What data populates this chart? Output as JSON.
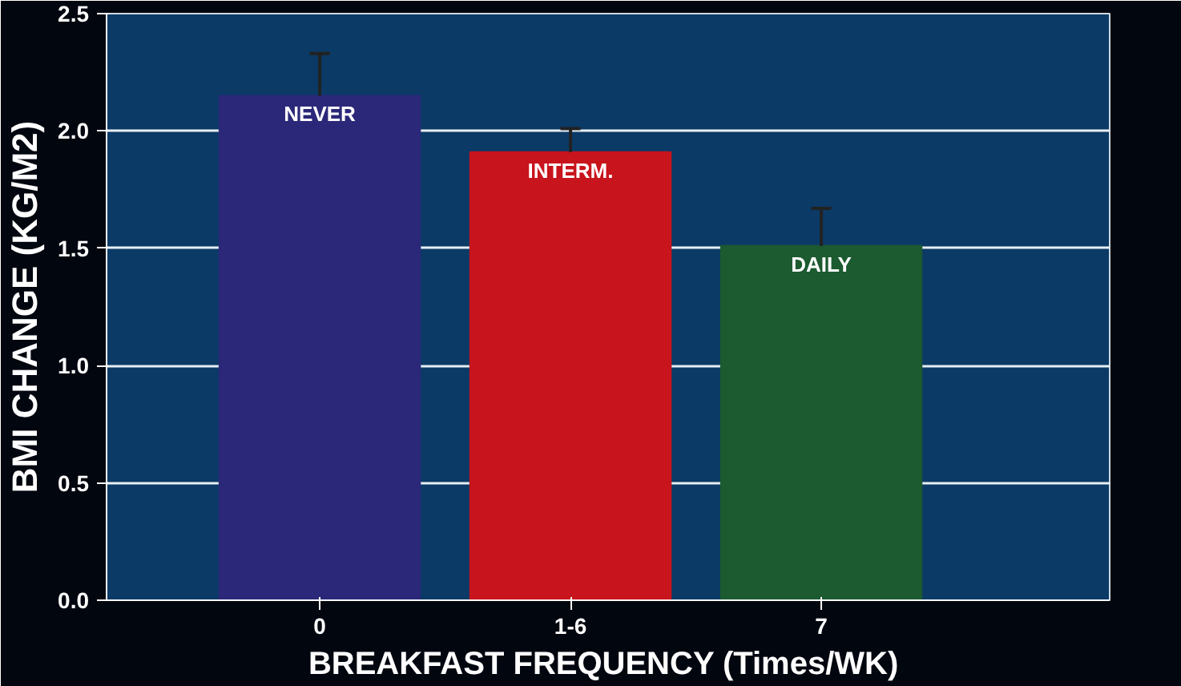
{
  "chart_data": {
    "type": "bar",
    "xlabel": "BREAKFAST FREQUENCY  (Times/WK)",
    "ylabel": "BMI CHANGE (KG/M2)",
    "categories": [
      "0",
      "1-6",
      "7"
    ],
    "values": [
      2.15,
      1.91,
      1.51
    ],
    "colors": [
      "#2b287a",
      "#c8141c",
      "#1c5a30"
    ],
    "errors": [
      [
        2.15,
        2.33
      ],
      [
        1.91,
        2.01
      ],
      [
        1.51,
        1.67
      ]
    ],
    "annotations": [
      {
        "text": "NEVER",
        "x": "0",
        "y": 2.15
      },
      {
        "text": "INTERM.",
        "x": "1-6",
        "y": 1.91
      },
      {
        "text": "DAILY",
        "x": "7",
        "y": 1.51
      }
    ],
    "ylim": [
      0,
      2.5
    ],
    "yticks": [
      {
        "value": 0,
        "label": "0.0"
      },
      {
        "value": 0.5,
        "label": "0.5"
      },
      {
        "value": 1,
        "label": "1.0"
      },
      {
        "value": 1.5,
        "label": "1.5"
      },
      {
        "value": 2,
        "label": "2.0"
      },
      {
        "value": 2.5,
        "label": "2.5"
      }
    ],
    "grid": "y"
  }
}
